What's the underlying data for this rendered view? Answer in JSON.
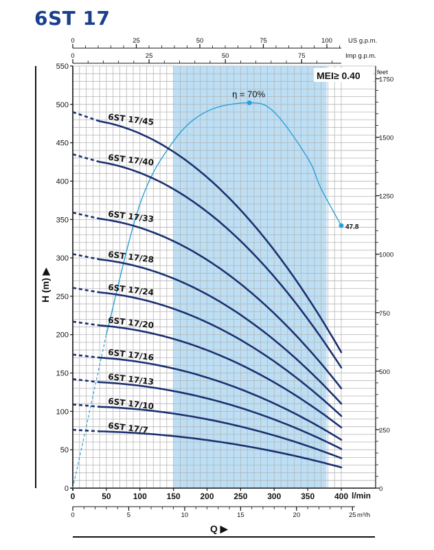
{
  "title": "6ST 17",
  "mei_label": "MEI≥ 0.40",
  "efficiency_label": "η = 70%",
  "end_label": "47.8",
  "colors": {
    "title": "#1a3f8c",
    "curve": "#1a3170",
    "efficiency": "#2aa0d8",
    "band": "#bcdff5",
    "grid": "#b5b5b5"
  },
  "chart_data": {
    "type": "line",
    "title": "6ST 17",
    "xlabel": "Q",
    "ylabel": "H (m)",
    "x_unit": "l/min",
    "x_range": [
      0,
      400
    ],
    "x_ticks": [
      0,
      50,
      100,
      150,
      200,
      250,
      300,
      350,
      400
    ],
    "y_range": [
      0,
      550
    ],
    "y_ticks": [
      0,
      50,
      100,
      150,
      200,
      250,
      300,
      350,
      400,
      450,
      500,
      550
    ],
    "top_axes": [
      {
        "unit": "US g.p.m.",
        "ticks": [
          0,
          25,
          50,
          75,
          100
        ]
      },
      {
        "unit": "Imp g.p.m.",
        "ticks": [
          0,
          25,
          50,
          75
        ]
      }
    ],
    "right_axis": {
      "unit": "feet",
      "ticks": [
        0,
        250,
        500,
        750,
        1000,
        1250,
        1500,
        1750
      ]
    },
    "bottom_axis": {
      "unit": "m³/h",
      "ticks": [
        0,
        5,
        10,
        15,
        20,
        25
      ]
    },
    "recommended_range": [
      150,
      378
    ],
    "series": [
      {
        "name": "6ST 17/45",
        "q_start": 40,
        "h_shutoff": 490,
        "h_start": 478,
        "h_end": 177
      },
      {
        "name": "6ST 17/40",
        "q_start": 40,
        "h_shutoff": 435,
        "h_start": 425,
        "h_end": 157
      },
      {
        "name": "6ST 17/33",
        "q_start": 40,
        "h_shutoff": 359,
        "h_start": 351,
        "h_end": 130
      },
      {
        "name": "6ST 17/28",
        "q_start": 40,
        "h_shutoff": 305,
        "h_start": 298,
        "h_end": 110
      },
      {
        "name": "6ST 17/24",
        "q_start": 40,
        "h_shutoff": 261,
        "h_start": 255,
        "h_end": 94
      },
      {
        "name": "6ST 17/20",
        "q_start": 40,
        "h_shutoff": 217,
        "h_start": 212,
        "h_end": 79
      },
      {
        "name": "6ST 17/16",
        "q_start": 40,
        "h_shutoff": 174,
        "h_start": 170,
        "h_end": 63
      },
      {
        "name": "6ST 17/13",
        "q_start": 40,
        "h_shutoff": 142,
        "h_start": 138,
        "h_end": 51
      },
      {
        "name": "6ST 17/10",
        "q_start": 40,
        "h_shutoff": 109,
        "h_start": 106,
        "h_end": 39
      },
      {
        "name": "6ST 17/7",
        "q_start": 40,
        "h_shutoff": 76,
        "h_start": 74,
        "h_end": 27
      }
    ],
    "efficiency_curve": {
      "label": "η = 70%",
      "dashed_until_q": 60,
      "points": [
        [
          0,
          0
        ],
        [
          50,
          200
        ],
        [
          100,
          370
        ],
        [
          150,
          452
        ],
        [
          200,
          491
        ],
        [
          263,
          502
        ],
        [
          300,
          490
        ],
        [
          350,
          430
        ],
        [
          370,
          390
        ],
        [
          400,
          342
        ]
      ],
      "peak": [
        263,
        502
      ],
      "end": [
        400,
        342
      ],
      "end_value": 47.8
    }
  }
}
